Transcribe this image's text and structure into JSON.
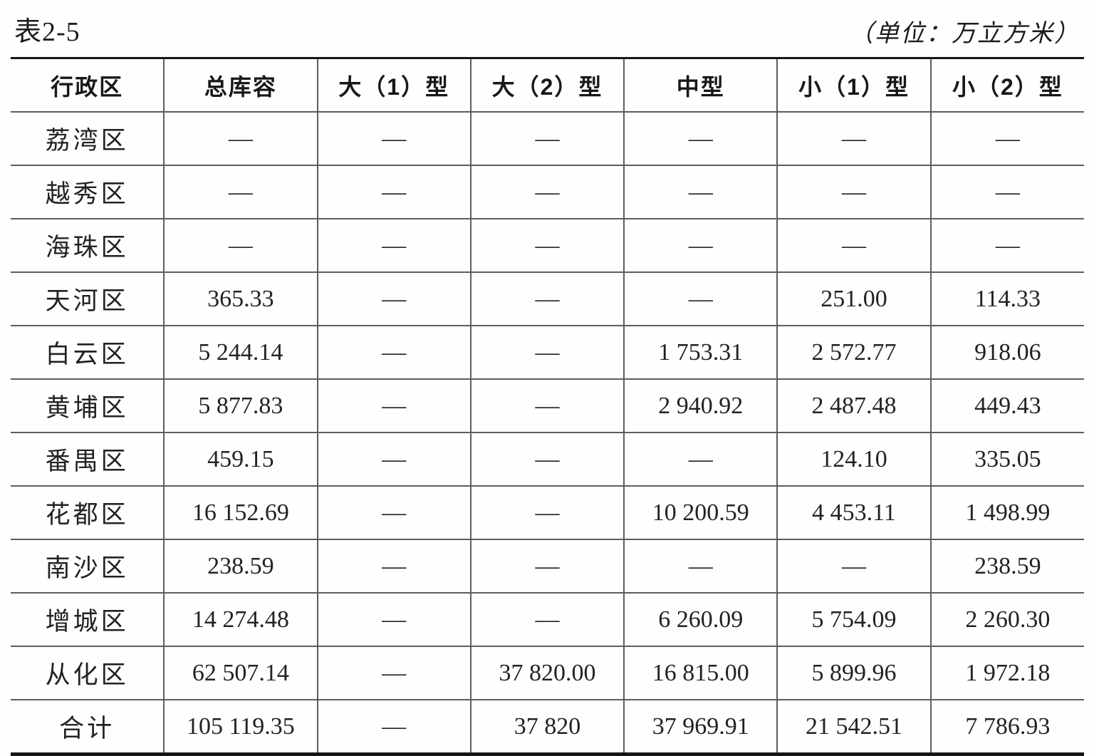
{
  "title": {
    "label": "表2-5",
    "unit": "（单位：万立方米）"
  },
  "table": {
    "columns": [
      "行政区",
      "总库容",
      "大（1）型",
      "大（2）型",
      "中型",
      "小（1）型",
      "小（2）型"
    ],
    "rows": [
      {
        "region": "荔湾区",
        "values": [
          "—",
          "—",
          "—",
          "—",
          "—",
          "—"
        ]
      },
      {
        "region": "越秀区",
        "values": [
          "—",
          "—",
          "—",
          "—",
          "—",
          "—"
        ]
      },
      {
        "region": "海珠区",
        "values": [
          "—",
          "—",
          "—",
          "—",
          "—",
          "—"
        ]
      },
      {
        "region": "天河区",
        "values": [
          "365.33",
          "—",
          "—",
          "—",
          "251.00",
          "114.33"
        ]
      },
      {
        "region": "白云区",
        "values": [
          "5 244.14",
          "—",
          "—",
          "1 753.31",
          "2 572.77",
          "918.06"
        ]
      },
      {
        "region": "黄埔区",
        "values": [
          "5 877.83",
          "—",
          "—",
          "2 940.92",
          "2 487.48",
          "449.43"
        ]
      },
      {
        "region": "番禺区",
        "values": [
          "459.15",
          "—",
          "—",
          "—",
          "124.10",
          "335.05"
        ]
      },
      {
        "region": "花都区",
        "values": [
          "16 152.69",
          "—",
          "—",
          "10 200.59",
          "4 453.11",
          "1 498.99"
        ]
      },
      {
        "region": "南沙区",
        "values": [
          "238.59",
          "—",
          "—",
          "—",
          "—",
          "238.59"
        ]
      },
      {
        "region": "增城区",
        "values": [
          "14 274.48",
          "—",
          "—",
          "6 260.09",
          "5 754.09",
          "2 260.30"
        ]
      },
      {
        "region": "从化区",
        "values": [
          "62 507.14",
          "—",
          "37 820.00",
          "16 815.00",
          "5 899.96",
          "1 972.18"
        ]
      },
      {
        "region": "合计",
        "values": [
          "105 119.35",
          "—",
          "37 820",
          "37 969.91",
          "21 542.51",
          "7 786.93"
        ]
      }
    ]
  }
}
